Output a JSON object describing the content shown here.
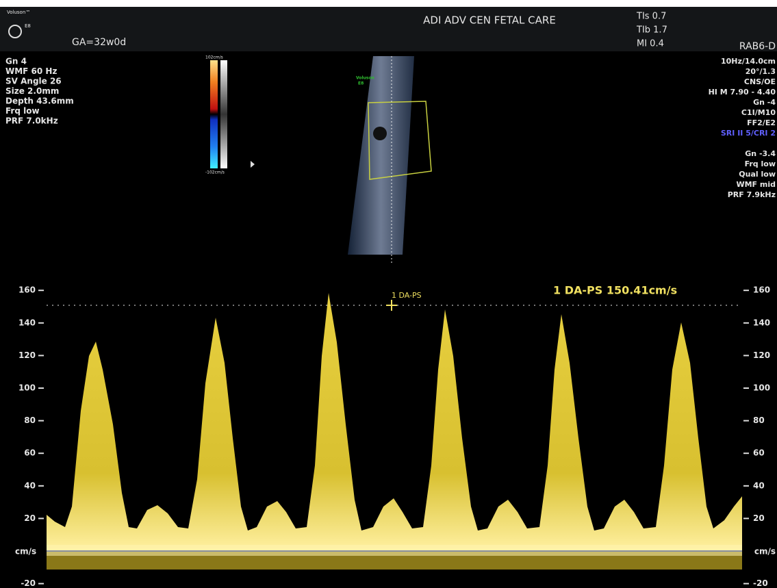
{
  "header": {
    "brand": "Voluson™",
    "model": "E8",
    "ga": "GA=32w0d",
    "site": "ADI ADV CEN FETAL CARE",
    "safety": [
      "TIs 0.7",
      "TIb 1.7",
      "MI 0.4"
    ],
    "probe": "RAB6-D"
  },
  "left_params": [
    "Gn  4",
    "WMF 60 Hz",
    "SV Angle 26",
    "Size  2.0mm",
    "Depth 43.6mm",
    "Frq low",
    "PRF  7.0kHz"
  ],
  "right_params": [
    "10Hz/14.0cm",
    "20°/1.3",
    "CNS/OE",
    "HI M 7.90 - 4.40",
    "Gn -4",
    "C1I/M10",
    "FF2/E2",
    "SRI II 5/CRI 2",
    "",
    "Gn -3.4",
    "Frq low",
    "Qual low",
    "WMF mid",
    "PRF 7.9kHz"
  ],
  "color_bar": {
    "max": "102cm/s",
    "min": "-102cm/s"
  },
  "image_label": [
    "Voluson",
    "E8"
  ],
  "measurement": {
    "cursor_label": "1 DA-PS",
    "result": "1 DA-PS 150.41cm/s"
  },
  "spectrum": {
    "ticks": [
      160,
      140,
      120,
      100,
      80,
      60,
      40,
      20,
      -20
    ],
    "unit": "cm/s"
  }
}
